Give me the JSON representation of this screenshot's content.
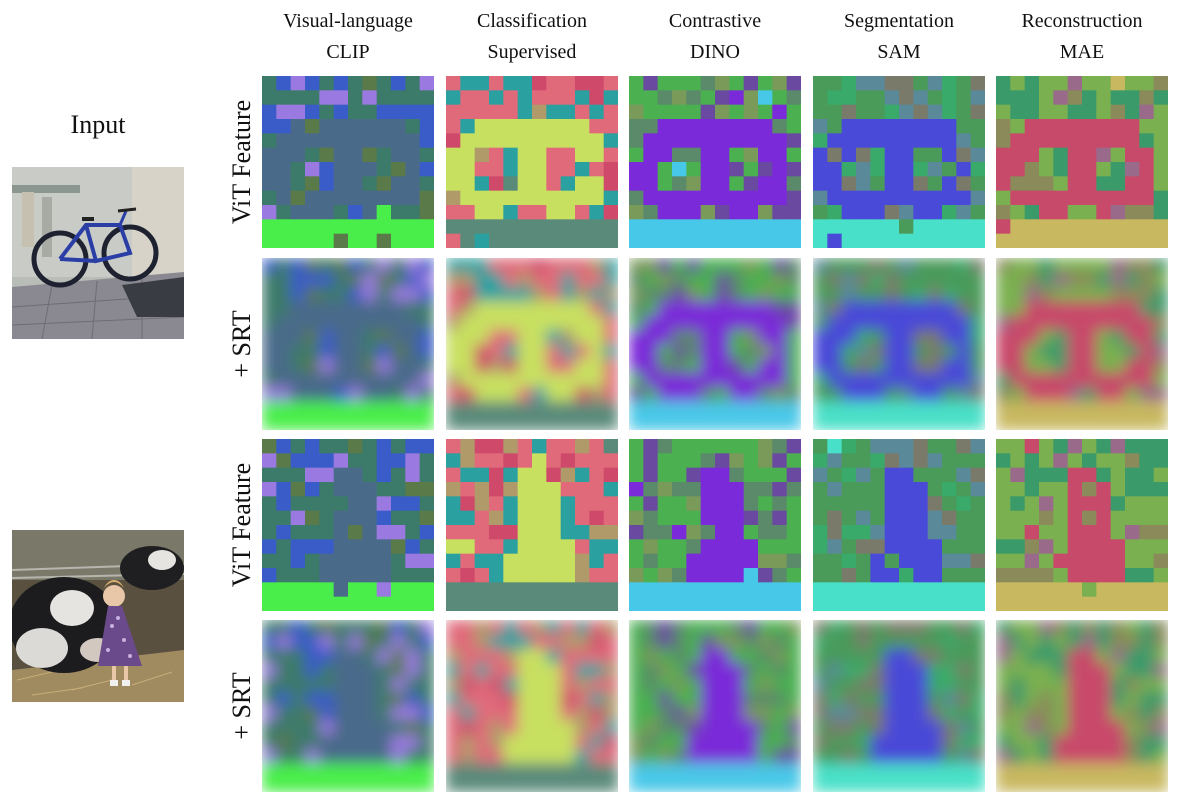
{
  "input_label": "Input",
  "columns": [
    {
      "line1": "Visual-language",
      "line2": "CLIP"
    },
    {
      "line1": "Classification",
      "line2": "Supervised"
    },
    {
      "line1": "Contrastive",
      "line2": "DINO"
    },
    {
      "line1": "Segmentation",
      "line2": "SAM"
    },
    {
      "line1": "Reconstruction",
      "line2": "MAE"
    }
  ],
  "row_labels": [
    "ViT Feature",
    "+ SRT",
    "ViT Feature",
    "+ SRT"
  ],
  "palette": {
    "clip": [
      "#4a6a8a",
      "#3c7a6a",
      "#4aee4a",
      "#3a5cc8",
      "#9a7ae0",
      "#5a7a4a"
    ],
    "supervised": [
      "#c8e060",
      "#e06a7a",
      "#5a8a7a",
      "#2aa0a0",
      "#b09a6a",
      "#cf4a6a"
    ],
    "dino": [
      "#7a2ad8",
      "#4ab050",
      "#48c8e8",
      "#5a8a6a",
      "#7a9a5a",
      "#6a4aa0"
    ],
    "sam": [
      "#4a4ad8",
      "#4a9a5a",
      "#48e0c8",
      "#7a7a6a",
      "#5a8a9a",
      "#3aaa6a"
    ],
    "mae": [
      "#c84a6a",
      "#7ab050",
      "#c8b860",
      "#3a9a6a",
      "#9a6a8a",
      "#8a8a5a"
    ]
  }
}
